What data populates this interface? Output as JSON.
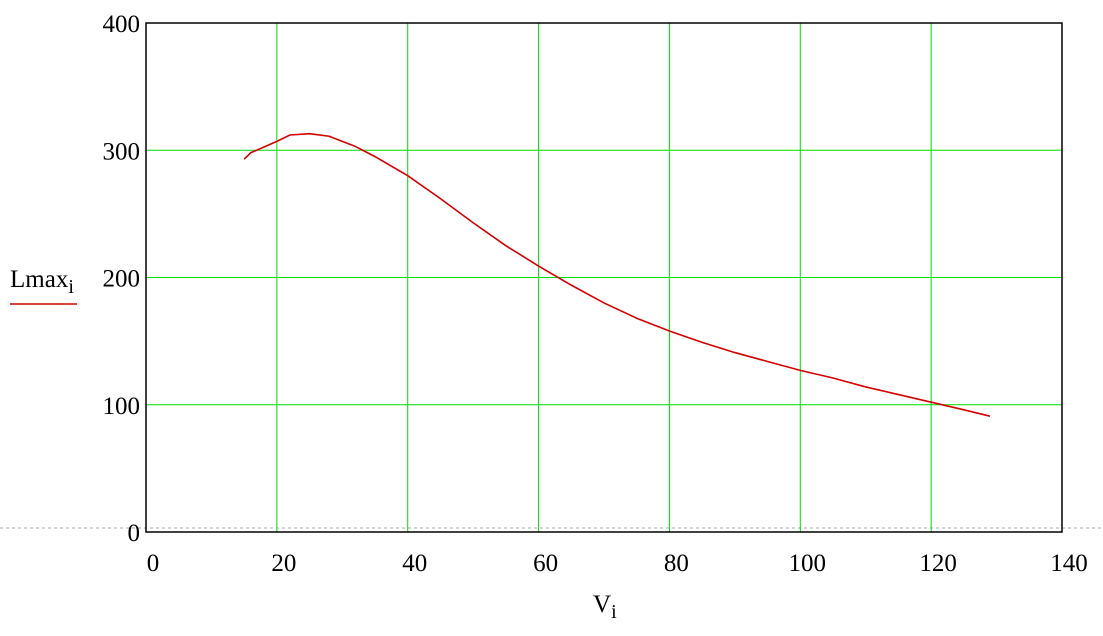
{
  "chart_data": {
    "type": "line",
    "xlabel": {
      "main": "V",
      "sub": "i"
    },
    "ylabel": {
      "main": "Lmax",
      "sub": "i"
    },
    "x": [
      15,
      16,
      20,
      22,
      25,
      28,
      30,
      32,
      35,
      40,
      45,
      50,
      55,
      60,
      65,
      70,
      75,
      80,
      85,
      90,
      95,
      100,
      105,
      110,
      115,
      120,
      125,
      129
    ],
    "series": [
      {
        "color": "#d40000",
        "values": [
          293,
          298,
          307,
          312,
          313,
          311,
          307,
          303,
          295,
          280,
          262,
          243,
          225,
          209,
          194,
          180,
          168,
          158,
          149,
          141,
          134,
          127,
          121,
          114,
          108,
          102,
          96,
          91
        ]
      }
    ],
    "xlim": [
      0,
      140
    ],
    "ylim": [
      0,
      400
    ],
    "xticks": [
      0,
      20,
      40,
      60,
      80,
      100,
      120,
      140
    ],
    "yticks": [
      0,
      100,
      200,
      300,
      400
    ],
    "grid": true,
    "grid_color": "#00dd00"
  }
}
